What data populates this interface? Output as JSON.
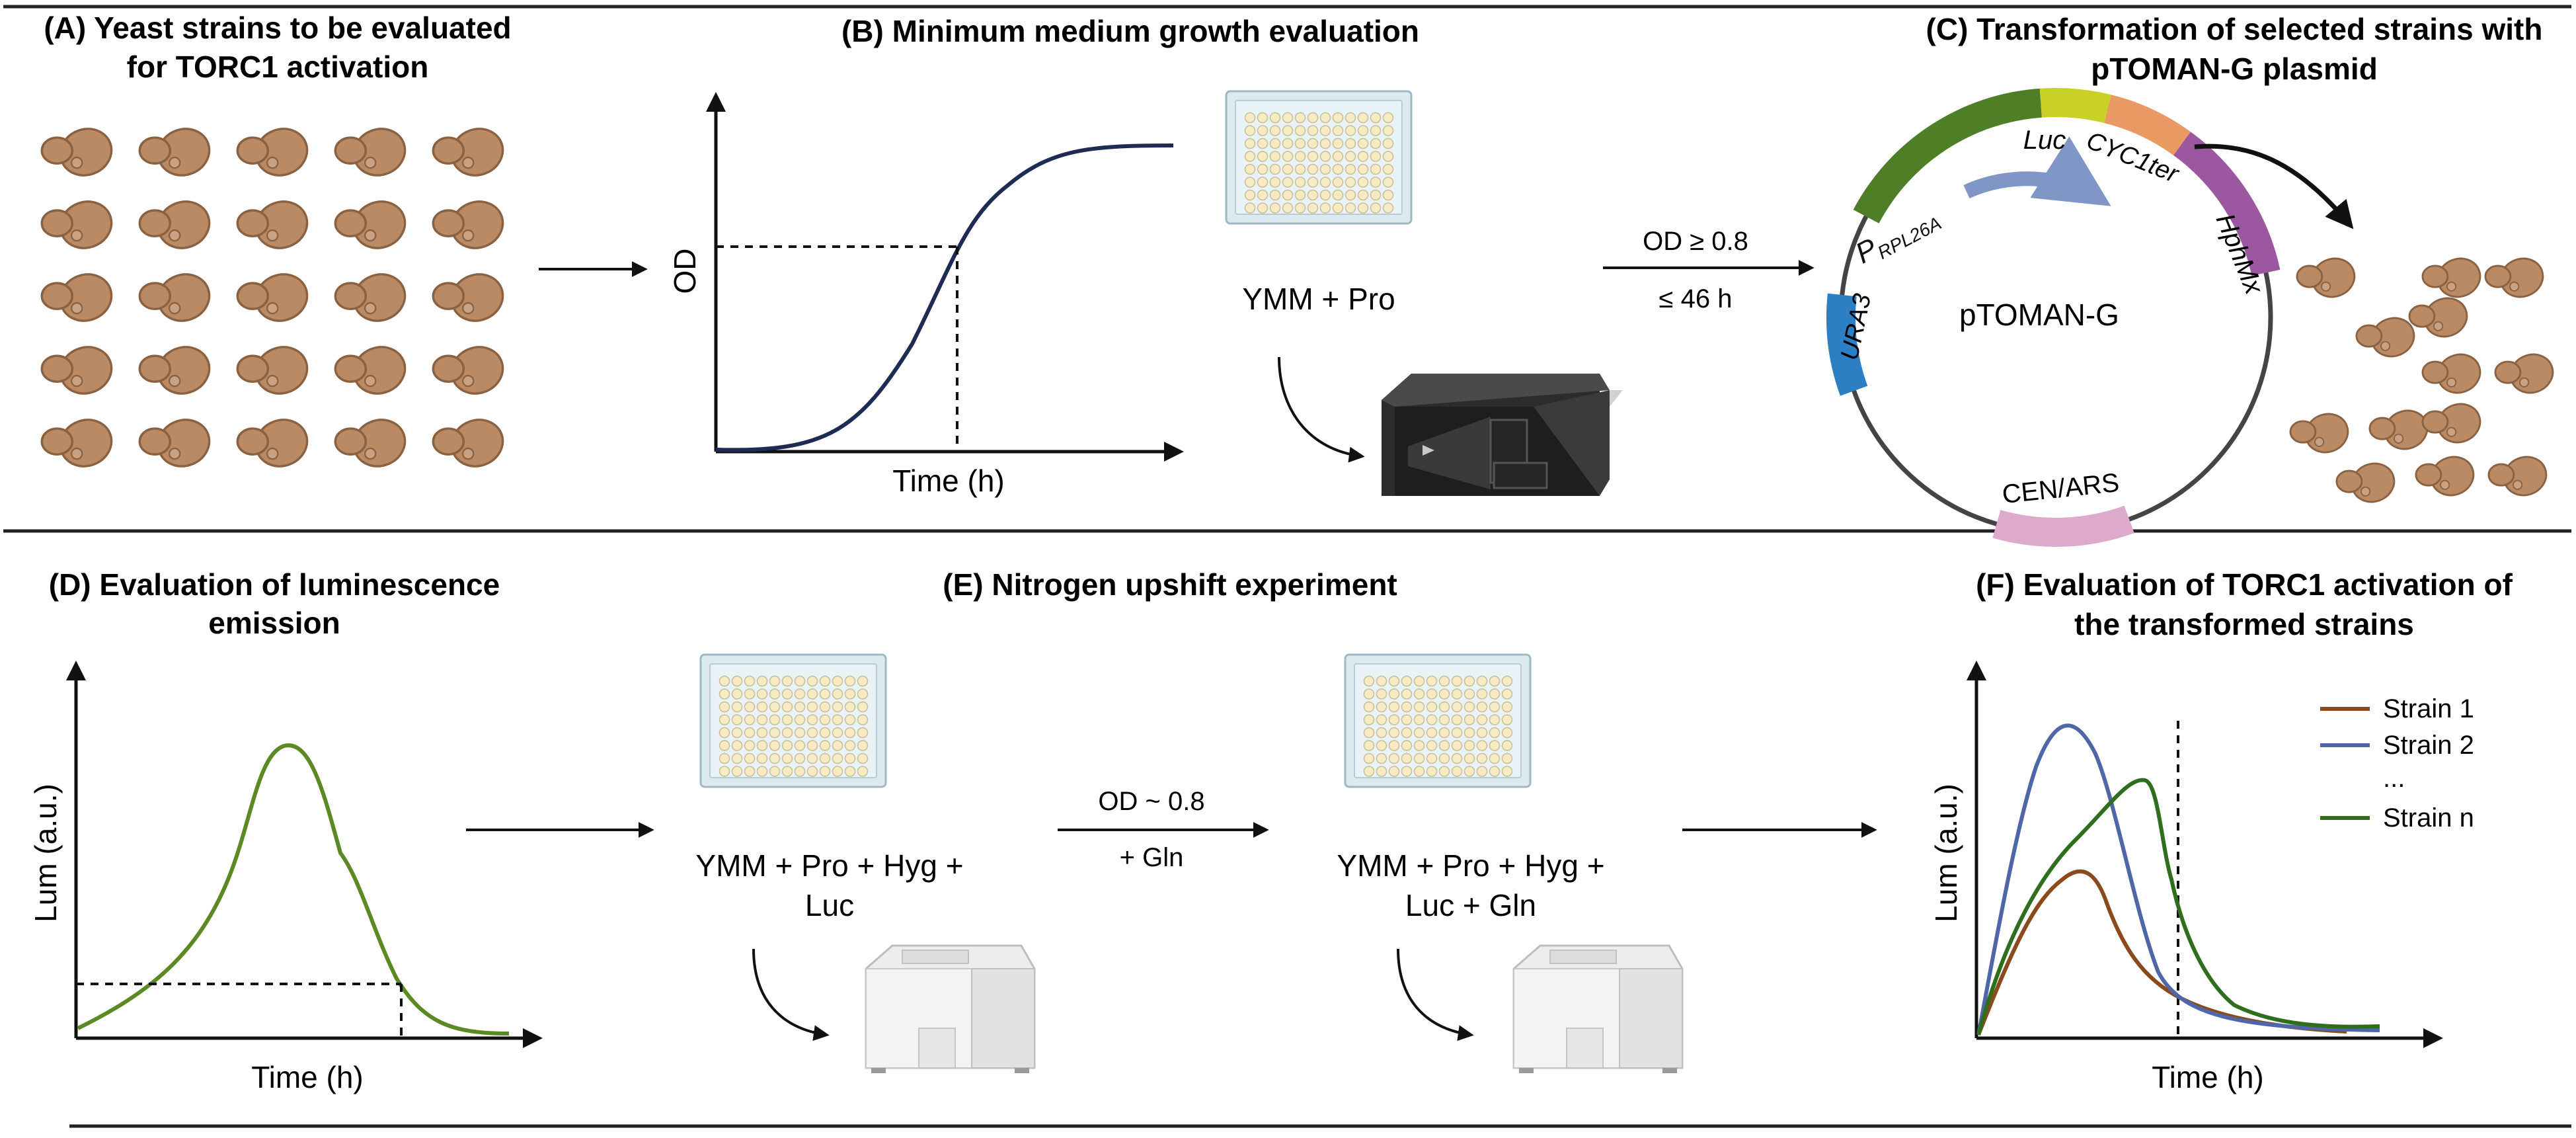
{
  "panel_a": {
    "title_line1": "(A) Yeast strains to be evaluated",
    "title_line2": "for TORC1 activation",
    "cell_icon": "yeast-cell-icon"
  },
  "panel_b": {
    "title": "(B) Minimum medium growth evaluation",
    "y_label": "OD",
    "x_label": "Time (h)",
    "plate_label": "YMM + Pro",
    "plate_icon": "96-well-plate-icon",
    "reader_icon": "plate-reader-icon"
  },
  "arrow_bc": {
    "line1": "OD ≥ 0.8",
    "line2": "≤ 46 h"
  },
  "panel_c": {
    "title_line1": "(C) Transformation of selected strains with",
    "title_line2": "pTOMAN-G plasmid",
    "plasmid_name": "pTOMAN-G",
    "promoter_main": "P",
    "promoter_sub": "RPL26A",
    "luc": "Luc",
    "cyc1ter": "CYC1ter",
    "hphmx": "HphMx",
    "ura3": "URA3",
    "cen_ars": "CEN/ARS"
  },
  "panel_d": {
    "title_line1": "(D) Evaluation of luminescence",
    "title_line2": "emission",
    "y_label": "Lum (a.u.)",
    "x_label": "Time (h)"
  },
  "panel_e": {
    "title": "(E) Nitrogen upshift experiment",
    "plate1_line1": "YMM + Pro + Hyg +",
    "plate1_line2": "Luc",
    "arrow_line1": "OD ~ 0.8",
    "arrow_line2": "+ Gln",
    "plate2_line1": "YMM + Pro + Hyg +",
    "plate2_line2": "Luc + Gln",
    "luminometer_icon": "luminometer-icon"
  },
  "panel_f": {
    "title_line1": "(F) Evaluation of TORC1 activation of",
    "title_line2": "the transformed strains",
    "y_label": "Lum (a.u.)",
    "x_label": "Time (h)",
    "legend": [
      {
        "name": "Strain 1",
        "color": "#8B4A1C"
      },
      {
        "name": "Strain 2",
        "color": "#4F67A8"
      },
      {
        "name": "...",
        "color": ""
      },
      {
        "name": "Strain n",
        "color": "#2F6E1D"
      }
    ]
  },
  "colors": {
    "growth_curve": "#1E2B55",
    "lum_curve": "#5B8A24",
    "yeast": "#B98A63",
    "promoter": "#4E7F27",
    "luc": "#C9D126",
    "cyc1ter": "#E99A63",
    "hphmx": "#9B58A0",
    "ura3": "#2D7FC4",
    "cen_ars": "#DDA9CC"
  }
}
